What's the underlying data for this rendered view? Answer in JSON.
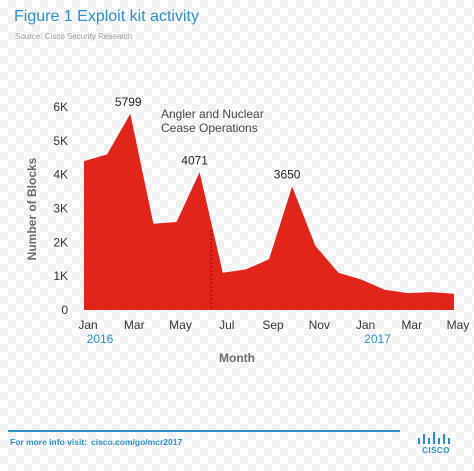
{
  "header": {
    "title": "Figure 1  Exploit kit activity",
    "source": "Source: Cisco Security Research"
  },
  "chart_data": {
    "type": "area",
    "x_labels": [
      "Jan",
      "",
      "Mar",
      "",
      "May",
      "",
      "Jul",
      "",
      "Sep",
      "",
      "Nov",
      "",
      "Jan",
      "",
      "Mar",
      "",
      "May"
    ],
    "x_year_labels": [
      {
        "index": 0,
        "label": "2016"
      },
      {
        "index": 12,
        "label": "2017"
      }
    ],
    "values": [
      4400,
      4600,
      5799,
      2550,
      2600,
      4071,
      1100,
      1200,
      1500,
      3650,
      1900,
      1100,
      900,
      600,
      500,
      530,
      480
    ],
    "peak_labels": [
      {
        "index": 2,
        "label": "5799"
      },
      {
        "index": 5,
        "label": "4071"
      },
      {
        "index": 9,
        "label": "3650"
      }
    ],
    "annotation": {
      "index": 5.5,
      "text_lines": [
        "Angler and Nuclear",
        "Cease Operations"
      ]
    },
    "yticks": [
      0,
      1000,
      2000,
      3000,
      4000,
      5000,
      6000
    ],
    "ytick_labels": [
      "0",
      "1K",
      "2K",
      "3K",
      "4K",
      "5K",
      "6K"
    ],
    "ylim": [
      0,
      6000
    ],
    "xlabel": "Month",
    "ylabel": "Number of Blocks",
    "grid": false,
    "colors": {
      "fill": "#e1251b",
      "text": "#333333",
      "year": "#2a8fc7",
      "axis_title": "#6b6b6b"
    }
  },
  "footer": {
    "prefix": "For more info visit:",
    "url": "cisco.com/go/mcr2017"
  },
  "logo": {
    "text": "CISCO",
    "icon": "cisco-bridge-icon",
    "color": "#2a8fc7"
  }
}
